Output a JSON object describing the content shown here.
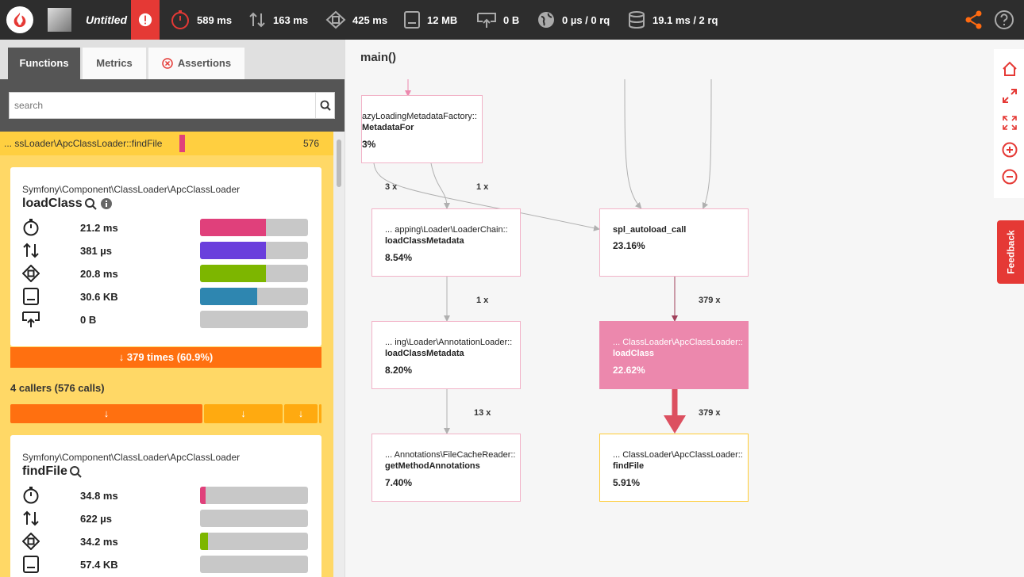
{
  "header": {
    "title": "Untitled",
    "metrics": [
      {
        "icon": "stopwatch-icon",
        "value": "589 ms"
      },
      {
        "icon": "io-arrows-icon",
        "value": "163 ms"
      },
      {
        "icon": "cpu-icon",
        "value": "425 ms"
      },
      {
        "icon": "memory-icon",
        "value": "12 MB"
      },
      {
        "icon": "network-icon",
        "value": "0 B"
      },
      {
        "icon": "globe-icon",
        "value": "0 µs / 0 rq"
      },
      {
        "icon": "database-icon",
        "value": "19.1 ms / 2 rq"
      }
    ],
    "accent": "#ff6a10",
    "alert_color": "#e53935"
  },
  "tabs": [
    {
      "label": "Functions",
      "active": true
    },
    {
      "label": "Metrics",
      "active": false
    },
    {
      "label": "Assertions",
      "active": false
    }
  ],
  "search": {
    "placeholder": "search",
    "value": ""
  },
  "selected": {
    "name": "... ssLoader\\ApcClassLoader::findFile",
    "count": "576"
  },
  "card1": {
    "namespace": "Symfony\\Component\\ClassLoader\\ApcClassLoader",
    "function": "loadClass",
    "metrics": [
      {
        "icon": "stopwatch-icon",
        "value": "21.2 ms",
        "fraction": 0.61,
        "color": "#e0407b"
      },
      {
        "icon": "io-arrows-icon",
        "value": "381 µs",
        "fraction": 0.61,
        "color": "#6a3fdc"
      },
      {
        "icon": "cpu-icon",
        "value": "20.8 ms",
        "fraction": 0.61,
        "color": "#7db600"
      },
      {
        "icon": "memory-icon",
        "value": "30.6 KB",
        "fraction": 0.53,
        "color": "#2e86b0"
      },
      {
        "icon": "network-icon",
        "value": "0 B",
        "fraction": 0.0,
        "color": "#999999"
      }
    ],
    "times": "379 times (60.9%)"
  },
  "callers": {
    "label": "4 callers (576 calls)",
    "bars": [
      {
        "arrow": "↓",
        "fraction": 0.61,
        "color": "#ff7010"
      },
      {
        "arrow": "↓",
        "fraction": 0.26,
        "color": "#ffaa10"
      },
      {
        "arrow": "↓",
        "fraction": 0.11,
        "color": "#ffaa10"
      }
    ]
  },
  "card2": {
    "namespace": "Symfony\\Component\\ClassLoader\\ApcClassLoader",
    "function": "findFile",
    "metrics": [
      {
        "icon": "stopwatch-icon",
        "value": "34.8 ms",
        "fraction": 0.05,
        "color": "#e0407b"
      },
      {
        "icon": "io-arrows-icon",
        "value": "622 µs",
        "fraction": 0.0,
        "color": "#6a3fdc"
      },
      {
        "icon": "cpu-icon",
        "value": "34.2 ms",
        "fraction": 0.07,
        "color": "#7db600"
      },
      {
        "icon": "memory-icon",
        "value": "57.4 KB",
        "fraction": 0.0,
        "color": "#2e86b0"
      }
    ]
  },
  "graph": {
    "title": "main()",
    "nodes": [
      {
        "l1": "azyLoadingMetadataFactory::",
        "l2": "MetadataFor",
        "pct": "3%"
      },
      {
        "l1": "... apping\\Loader\\LoaderChain::",
        "l2": "loadClassMetadata",
        "pct": "8.54%"
      },
      {
        "l1": "spl_autoload_call",
        "l2": "",
        "pct": "23.16%"
      },
      {
        "l1": "... ing\\Loader\\AnnotationLoader::",
        "l2": "loadClassMetadata",
        "pct": "8.20%"
      },
      {
        "l1": "... ClassLoader\\ApcClassLoader::",
        "l2": "loadClass",
        "pct": "22.62%"
      },
      {
        "l1": "... Annotations\\FileCacheReader::",
        "l2": "getMethodAnnotations",
        "pct": "7.40%"
      },
      {
        "l1": "... ClassLoader\\ApcClassLoader::",
        "l2": "findFile",
        "pct": "5.91%"
      }
    ],
    "edge_labels": [
      "3 x",
      "1 x",
      "1 x",
      "379 x",
      "13 x",
      "379 x"
    ],
    "feedback": "Feedback"
  }
}
